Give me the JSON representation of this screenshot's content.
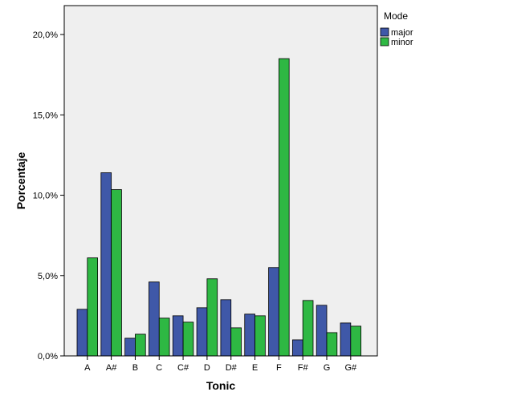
{
  "chart_data": {
    "type": "bar",
    "xlabel": "Tonic",
    "ylabel": "Porcentaje",
    "categories": [
      "A",
      "A#",
      "B",
      "C",
      "C#",
      "D",
      "D#",
      "E",
      "F",
      "F#",
      "G",
      "G#"
    ],
    "series": [
      {
        "name": "major",
        "color": "#3f58a8",
        "values": [
          2.9,
          11.4,
          1.1,
          4.6,
          2.5,
          3.0,
          3.5,
          2.6,
          5.5,
          1.0,
          3.15,
          2.05
        ]
      },
      {
        "name": "minor",
        "color": "#2eb843",
        "values": [
          6.1,
          10.35,
          1.35,
          2.35,
          2.1,
          4.8,
          1.75,
          2.5,
          18.5,
          3.45,
          1.45,
          1.85
        ]
      }
    ],
    "ylim": [
      0,
      21.8
    ],
    "yticks": [
      0,
      5,
      10,
      15,
      20
    ],
    "ytick_labels": [
      "0,0%",
      "5,0%",
      "10,0%",
      "15,0%",
      "20,0%"
    ],
    "legend": {
      "title": "Mode",
      "position": "right"
    },
    "plot_background": "#efefef"
  }
}
